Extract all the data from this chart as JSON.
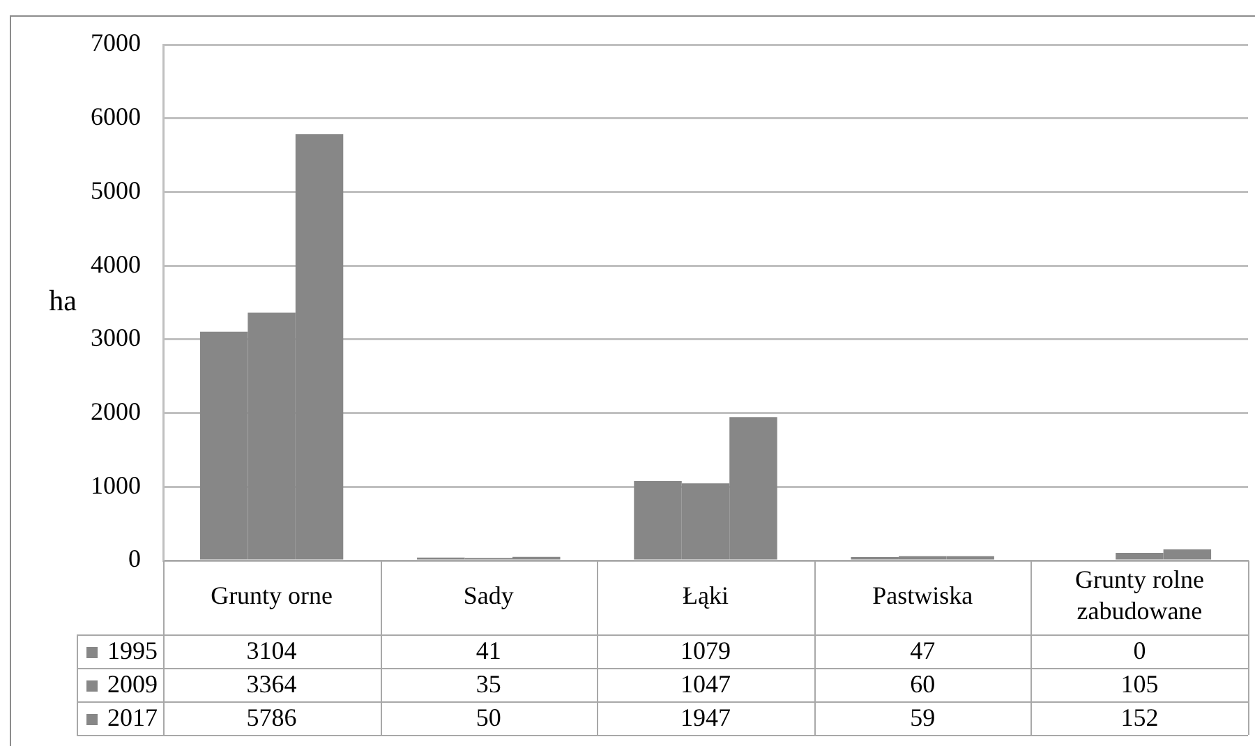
{
  "chart_data": {
    "type": "bar",
    "ylabel": "ha",
    "categories": [
      "Grunty orne",
      "Sady",
      "Łąki",
      "Pastwiska",
      "Grunty rolne zabudowane"
    ],
    "series": [
      {
        "name": "1995",
        "color": "#878787",
        "values": [
          3104,
          41,
          1079,
          47,
          0
        ]
      },
      {
        "name": "2009",
        "color": "#878787",
        "values": [
          3364,
          35,
          1047,
          60,
          105
        ]
      },
      {
        "name": "2017",
        "color": "#878787",
        "values": [
          5786,
          50,
          1947,
          59,
          152
        ]
      }
    ],
    "ylim": [
      0,
      7000
    ],
    "yticks": [
      0,
      1000,
      2000,
      3000,
      4000,
      5000,
      6000,
      7000
    ],
    "grid": "y",
    "legend": "bottom",
    "data_labels": true
  }
}
